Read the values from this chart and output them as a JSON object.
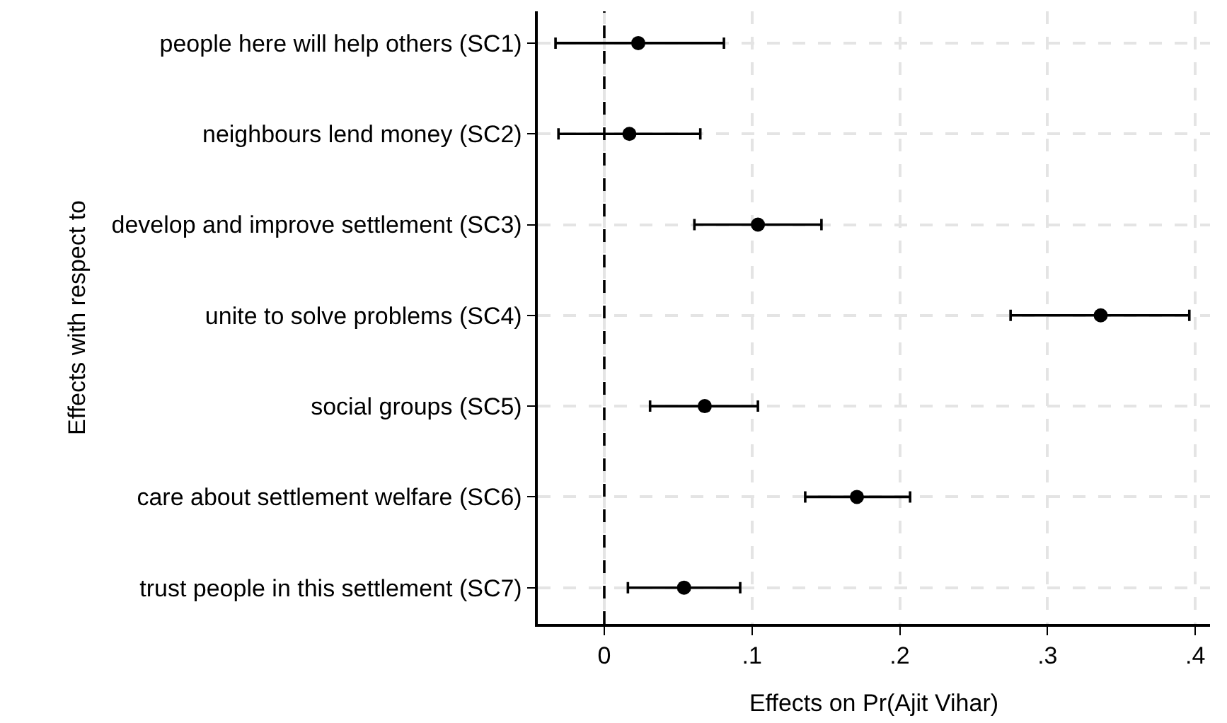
{
  "chart_data": {
    "type": "scatter",
    "orientation": "horizontal",
    "xlabel": "Effects on Pr(Ajit Vihar)",
    "ylabel": "Effects with respect to",
    "categories": [
      "people here will help others (SC1)",
      "neighbours lend money (SC2)",
      "develop and improve settlement (SC3)",
      "unite to solve problems (SC4)",
      "social groups (SC5)",
      "care about settlement welfare (SC6)",
      "trust people in this settlement (SC7)"
    ],
    "color": "#000000",
    "values": [
      0.023,
      0.017,
      0.104,
      0.336,
      0.068,
      0.171,
      0.054
    ],
    "errors": [
      [
        -0.033,
        0.081
      ],
      [
        -0.031,
        0.065
      ],
      [
        0.061,
        0.147
      ],
      [
        0.275,
        0.396
      ],
      [
        0.031,
        0.104
      ],
      [
        0.136,
        0.207
      ],
      [
        0.016,
        0.092
      ]
    ],
    "xlim": [
      -0.045,
      0.41
    ],
    "xticks": [
      0,
      {
        "value": 0.1,
        "label": ".1"
      },
      {
        "value": 0.2,
        "label": ".2"
      },
      {
        "value": 0.3,
        "label": ".3"
      },
      {
        "value": 0.4,
        "label": ".4"
      }
    ],
    "ref_lines": [
      {
        "axis": "x",
        "value": 0,
        "color": "#000000",
        "line_style": "dashed"
      }
    ],
    "grid": true,
    "marker": "circle"
  }
}
